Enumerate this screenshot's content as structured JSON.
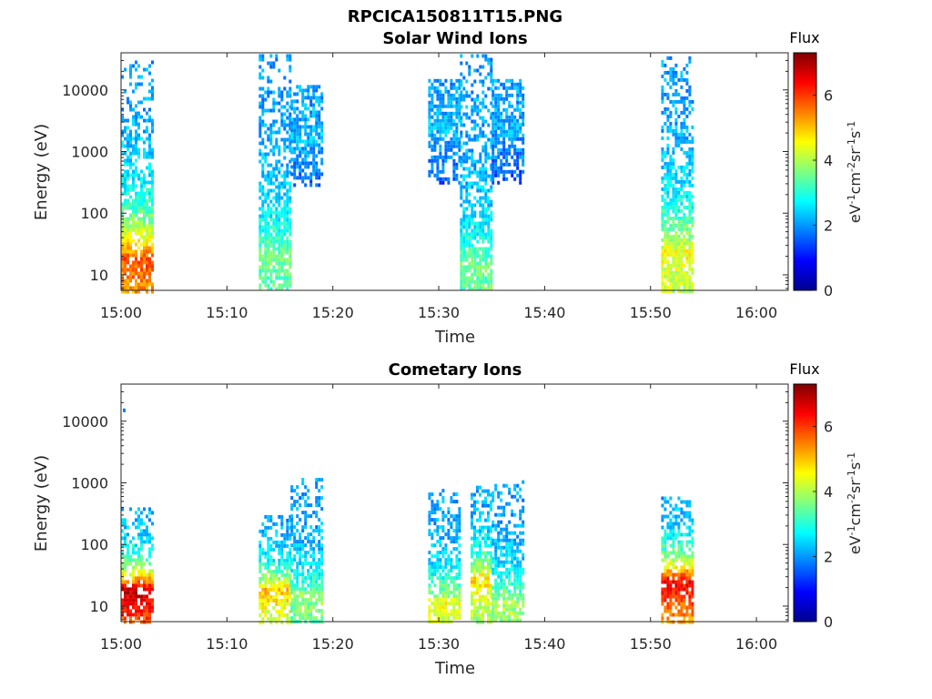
{
  "figure_title": "RPCICA150811T15.PNG",
  "chart_data": [
    {
      "type": "heatmap",
      "title": "Solar Wind Ions",
      "xlabel": "Time",
      "ylabel": "Energy (eV)",
      "x_scale": "time",
      "y_scale": "log",
      "xlim": [
        "15:00",
        "16:03"
      ],
      "ylim": [
        5.6,
        40000
      ],
      "x_ticks": [
        "15:00",
        "15:10",
        "15:20",
        "15:30",
        "15:40",
        "15:50",
        "16:00"
      ],
      "y_ticks": [
        10,
        100,
        1000,
        10000
      ],
      "y_tick_labels": [
        "10",
        "100",
        "1000",
        "10000"
      ],
      "colorbar": {
        "label": "Flux",
        "unit_label": "eV-1cm-2sr-1s-1",
        "range": [
          0,
          7.3
        ],
        "ticks": [
          0,
          2,
          4,
          6
        ],
        "colormap": "jet"
      },
      "bursts": [
        {
          "start": "15:00",
          "end": "15:03",
          "energy_min": 5.6,
          "energy_max": 30000,
          "peak_energy": 20,
          "peak_flux": 5.8
        },
        {
          "start": "15:13",
          "end": "15:16",
          "energy_min": 5.6,
          "energy_max": 38000,
          "peak_energy": 22,
          "peak_flux": 3.6
        },
        {
          "start": "15:16",
          "end": "15:19",
          "energy_min": 300,
          "energy_max": 12000,
          "peak_energy": 2000,
          "peak_flux": 2.3
        },
        {
          "start": "15:29",
          "end": "15:32",
          "energy_min": 300,
          "energy_max": 15000,
          "peak_energy": 3000,
          "peak_flux": 2.3
        },
        {
          "start": "15:32",
          "end": "15:35",
          "energy_min": 5.6,
          "energy_max": 38000,
          "peak_energy": 15,
          "peak_flux": 3.6
        },
        {
          "start": "15:35",
          "end": "15:38",
          "energy_min": 300,
          "energy_max": 15000,
          "peak_energy": 3000,
          "peak_flux": 2.2
        },
        {
          "start": "15:51",
          "end": "15:54",
          "energy_min": 5.6,
          "energy_max": 35000,
          "peak_energy": 25,
          "peak_flux": 4.5
        }
      ]
    },
    {
      "type": "heatmap",
      "title": "Cometary Ions",
      "xlabel": "Time",
      "ylabel": "Energy (eV)",
      "x_scale": "time",
      "y_scale": "log",
      "xlim": [
        "15:00",
        "16:03"
      ],
      "ylim": [
        5.6,
        40000
      ],
      "x_ticks": [
        "15:00",
        "15:10",
        "15:20",
        "15:30",
        "15:40",
        "15:50",
        "16:00"
      ],
      "y_ticks": [
        10,
        100,
        1000,
        10000
      ],
      "y_tick_labels": [
        "10",
        "100",
        "1000",
        "10000"
      ],
      "colorbar": {
        "label": "Flux",
        "unit_label": "eV-1cm-2sr-1s-1",
        "range": [
          0,
          7.3
        ],
        "ticks": [
          0,
          2,
          4,
          6
        ],
        "colormap": "jet"
      },
      "bursts": [
        {
          "start": "15:00",
          "end": "15:03",
          "energy_min": 5.6,
          "energy_max": 400,
          "peak_energy": 20,
          "peak_flux": 6.9
        },
        {
          "start": "15:13",
          "end": "15:16",
          "energy_min": 5.6,
          "energy_max": 300,
          "peak_energy": 20,
          "peak_flux": 5.0
        },
        {
          "start": "15:16",
          "end": "15:19",
          "energy_min": 5.6,
          "energy_max": 1200,
          "peak_energy": 15,
          "peak_flux": 3.8
        },
        {
          "start": "15:29",
          "end": "15:32",
          "energy_min": 5.6,
          "energy_max": 800,
          "peak_energy": 12,
          "peak_flux": 4.5
        },
        {
          "start": "15:33",
          "end": "15:35",
          "energy_min": 5.6,
          "energy_max": 900,
          "peak_energy": 30,
          "peak_flux": 4.8
        },
        {
          "start": "15:35",
          "end": "15:38",
          "energy_min": 5.6,
          "energy_max": 1100,
          "peak_energy": 12,
          "peak_flux": 4.0
        },
        {
          "start": "15:51",
          "end": "15:54",
          "energy_min": 5.6,
          "energy_max": 600,
          "peak_energy": 28,
          "peak_flux": 6.5
        }
      ],
      "isolated_points": [
        {
          "time": "15:00",
          "energy": 15000,
          "flux": 1.8
        }
      ]
    }
  ]
}
